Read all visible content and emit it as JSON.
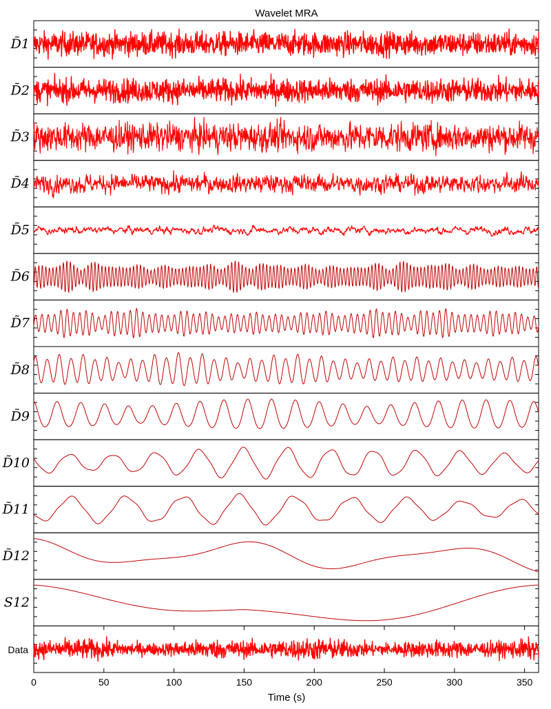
{
  "chart_data": {
    "type": "line",
    "title": "Wavelet MRA",
    "xlabel": "Time (s)",
    "xlim": [
      0,
      360
    ],
    "x_ticks": [
      "0",
      "50",
      "100",
      "150",
      "200",
      "250",
      "300",
      "350"
    ],
    "grid": false,
    "trace_color": "#ff0000",
    "panels": [
      {
        "label": "D̃1",
        "kind": "noise",
        "amplitude": 1.0,
        "period_s": 0.05
      },
      {
        "label": "D̃2",
        "kind": "noise",
        "amplitude": 1.0,
        "period_s": 0.1
      },
      {
        "label": "D̃3",
        "kind": "noise",
        "amplitude": 0.9,
        "period_s": 0.2
      },
      {
        "label": "D̃4",
        "kind": "noise",
        "amplitude": 0.8,
        "period_s": 0.4
      },
      {
        "label": "D̃5",
        "kind": "noise",
        "amplitude": 0.7,
        "period_s": 0.8
      },
      {
        "label": "D̃6",
        "kind": "oscillation",
        "amplitude": 0.75,
        "period_s": 2.5
      },
      {
        "label": "D̃7",
        "kind": "oscillation",
        "amplitude": 0.7,
        "period_s": 4.5
      },
      {
        "label": "D̃8",
        "kind": "oscillation",
        "amplitude": 0.8,
        "period_s": 8.5
      },
      {
        "label": "D̃9",
        "kind": "oscillation",
        "amplitude": 0.8,
        "period_s": 17
      },
      {
        "label": "D̃10",
        "kind": "oscillation",
        "amplitude": 0.8,
        "period_s": 31
      },
      {
        "label": "D̃11",
        "kind": "oscillation",
        "amplitude": 0.8,
        "period_s": 40
      },
      {
        "label": "D̃12",
        "kind": "smooth",
        "amplitude": 0.9,
        "period_s": 150
      },
      {
        "label": "S12",
        "kind": "smooth",
        "amplitude": 0.9,
        "period_s": 360
      },
      {
        "label": "Data",
        "kind": "data",
        "amplitude": 0.85,
        "period_s": 0.05
      }
    ]
  }
}
